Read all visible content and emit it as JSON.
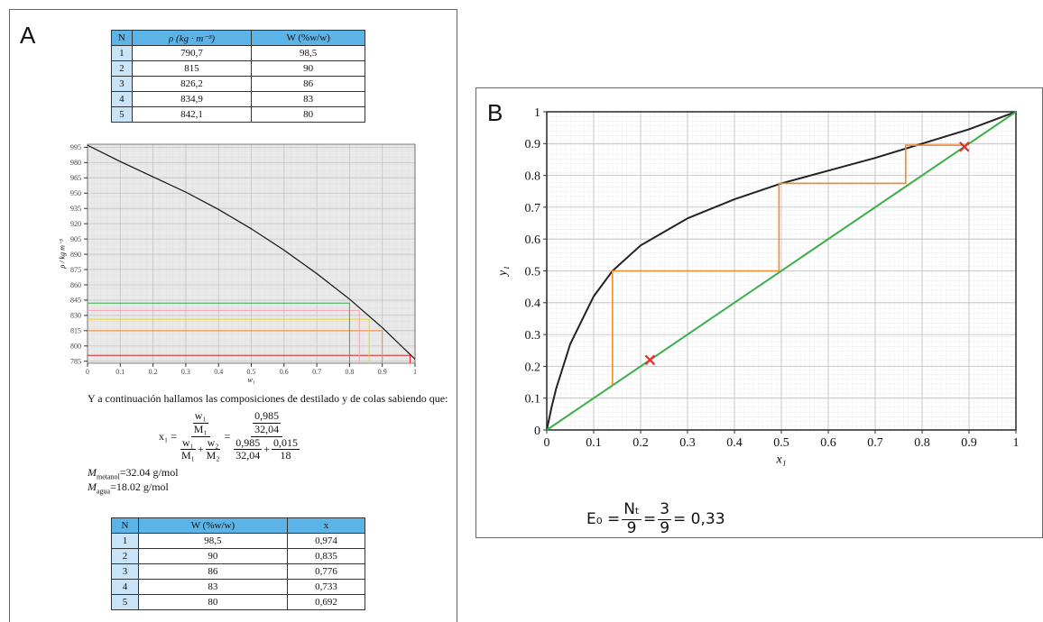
{
  "panel_a": {
    "label": "A",
    "table1": {
      "headers": [
        "N",
        "ρ (kg · m⁻³)",
        "W (%w/w)"
      ],
      "rows": [
        [
          "1",
          "790,7",
          "98,5"
        ],
        [
          "2",
          "815",
          "90"
        ],
        [
          "3",
          "826,2",
          "86"
        ],
        [
          "4",
          "834,9",
          "83"
        ],
        [
          "5",
          "842,1",
          "80"
        ]
      ]
    },
    "chart": {
      "type": "line",
      "xlabel": "w₁",
      "ylabel": "ρ / kg m⁻³",
      "xlim": [
        0,
        1
      ],
      "ylim": [
        783,
        998
      ],
      "xticks": [
        0,
        0.1,
        0.2,
        0.3,
        0.4,
        0.5,
        0.6,
        0.7,
        0.8,
        0.9,
        1
      ],
      "yticks": [
        785,
        800,
        815,
        830,
        845,
        860,
        875,
        890,
        905,
        920,
        935,
        950,
        965,
        980,
        995
      ],
      "grid": true,
      "series": [
        {
          "color": "#111111",
          "x": [
            0,
            0.1,
            0.2,
            0.3,
            0.4,
            0.5,
            0.6,
            0.7,
            0.8,
            0.9,
            1
          ],
          "values": [
            997,
            981,
            966,
            951,
            934,
            915,
            894,
            871,
            846,
            818,
            787
          ]
        }
      ],
      "guides": {
        "x": [
          0.985,
          0.9,
          0.86,
          0.83,
          0.8
        ],
        "y": [
          790.7,
          815,
          826.2,
          834.9,
          842.1
        ],
        "colors": [
          "#e02020",
          "#f08a2c",
          "#e8d82a",
          "#f2a0b0",
          "#3aae4a"
        ]
      }
    },
    "text": "Y a continuación hallamos las composiciones de destilado y de colas sabiendo que:",
    "formula": {
      "lhs": "x₁ =",
      "sym_top": [
        "w₁",
        "M₁"
      ],
      "sym_bottom": [
        [
          "w₁",
          "M₁"
        ],
        "+",
        [
          "w₂",
          "M₂"
        ]
      ],
      "eq": "=",
      "num_top": [
        "0,985",
        "32,04"
      ],
      "num_bottom": [
        [
          "0,985",
          "32,04"
        ],
        "+",
        [
          "0,015",
          "18"
        ]
      ]
    },
    "masses": [
      {
        "symbol": "M",
        "sub": "metanol",
        "rest": "=32.04 g/mol"
      },
      {
        "symbol": "M",
        "sub": "agua",
        "rest": "=18.02 g/mol"
      }
    ],
    "table2": {
      "headers": [
        "N",
        "W (%w/w)",
        "x"
      ],
      "rows": [
        [
          "1",
          "98,5",
          "0,974"
        ],
        [
          "2",
          "90",
          "0,835"
        ],
        [
          "3",
          "86",
          "0,776"
        ],
        [
          "4",
          "83",
          "0,733"
        ],
        [
          "5",
          "80",
          "0,692"
        ]
      ]
    }
  },
  "panel_b": {
    "label": "B",
    "chart": {
      "type": "line",
      "xlabel": "x₁",
      "ylabel": "y₁",
      "xlim": [
        0,
        1
      ],
      "ylim": [
        0,
        1
      ],
      "xticks": [
        0,
        0.1,
        0.2,
        0.3,
        0.4,
        0.5,
        0.6,
        0.7,
        0.8,
        0.9,
        1
      ],
      "yticks": [
        0,
        0.1,
        0.2,
        0.3,
        0.4,
        0.5,
        0.6,
        0.7,
        0.8,
        0.9,
        1
      ],
      "grid": true,
      "series": [
        {
          "color": "#222222",
          "x": [
            0,
            0.01,
            0.02,
            0.05,
            0.1,
            0.14,
            0.2,
            0.3,
            0.4,
            0.5,
            0.6,
            0.7,
            0.8,
            0.9,
            1
          ],
          "values": [
            0,
            0.07,
            0.13,
            0.27,
            0.42,
            0.5,
            0.58,
            0.665,
            0.725,
            0.775,
            0.815,
            0.855,
            0.9,
            0.945,
            1
          ]
        },
        {
          "color": "#3aae4a",
          "x": [
            0,
            1
          ],
          "values": [
            0,
            1
          ]
        }
      ],
      "steps": {
        "color": "#f08a2c",
        "x": [
          0.14,
          0.14,
          0.495,
          0.495,
          0.765,
          0.765,
          0.89
        ],
        "values": [
          0.14,
          0.5,
          0.5,
          0.775,
          0.775,
          0.895,
          0.895
        ]
      },
      "markers": {
        "color": "#e03030",
        "x": [
          0.22,
          0.89
        ],
        "values": [
          0.22,
          0.89
        ]
      }
    },
    "formula": {
      "lhs": "E₀ =",
      "frac1": {
        "num": "Nₜ",
        "den": "9"
      },
      "eq": "=",
      "frac2": {
        "num": "3",
        "den": "9"
      },
      "rhs": "= 0,33"
    }
  }
}
